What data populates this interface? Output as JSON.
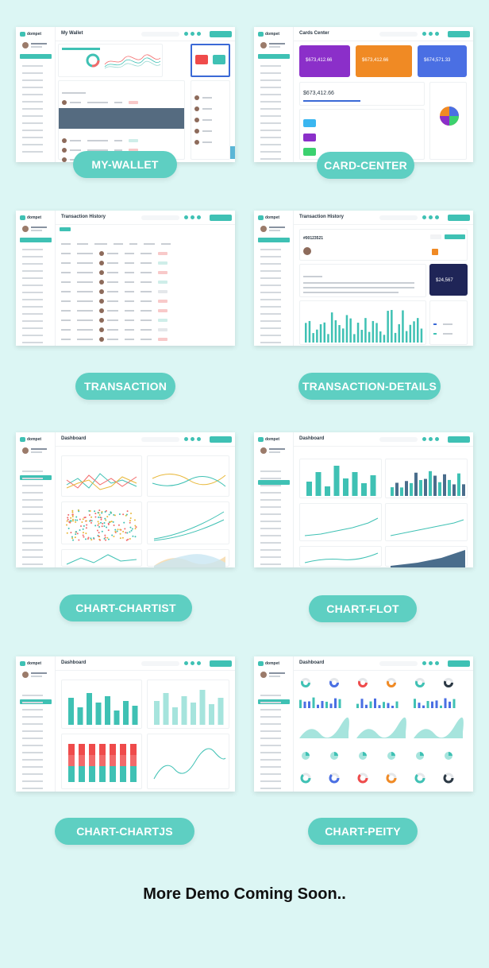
{
  "cards": [
    {
      "title": "My Wallet",
      "pill": "MY-WALLET"
    },
    {
      "title": "Cards Center",
      "pill": "CARD-CENTER"
    },
    {
      "title": "Transaction History",
      "pill": "TRANSACTION"
    },
    {
      "title": "Transaction History",
      "pill": "TRANSACTION-DETAILS"
    },
    {
      "title": "Dashboard",
      "pill": "CHART-CHARTIST"
    },
    {
      "title": "Dashboard",
      "pill": "CHART-FLOT"
    },
    {
      "title": "Dashboard",
      "pill": "CHART-CHARTJS"
    },
    {
      "title": "Dashboard",
      "pill": "CHART-PEITY"
    }
  ],
  "brand": "dompet",
  "card_center": {
    "balances": [
      "$673,412.66",
      "$673,412.66",
      "$674,571.33"
    ],
    "main_balance": "$673,412.66"
  },
  "transaction_details": {
    "id": "#00123521",
    "amount": "$24,567"
  },
  "footer": "More Demo Coming Soon..",
  "colors": {
    "accent": "#3fc1b4",
    "pill": "#5ecfc2",
    "background": "#dcf6f4",
    "purple": "#8b2fc9",
    "orange": "#f08a24",
    "blue": "#4a6fe3"
  }
}
